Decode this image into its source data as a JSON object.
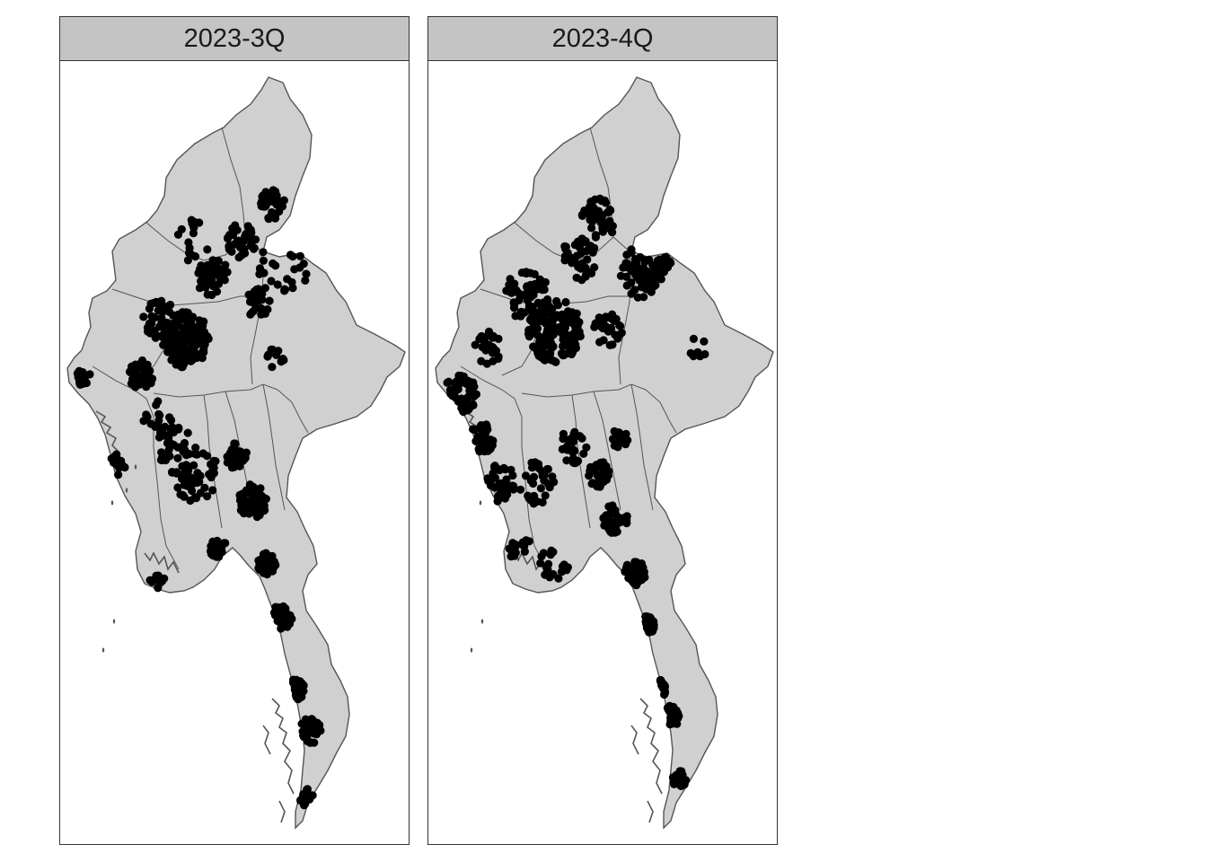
{
  "panels": [
    {
      "label": "2023-3Q",
      "side": "left"
    },
    {
      "label": "2023-4Q",
      "side": "right"
    }
  ],
  "colors": {
    "land": "#d0d0d0",
    "border": "#555555",
    "point": "#000000",
    "strip": "#c4c4c4"
  }
}
